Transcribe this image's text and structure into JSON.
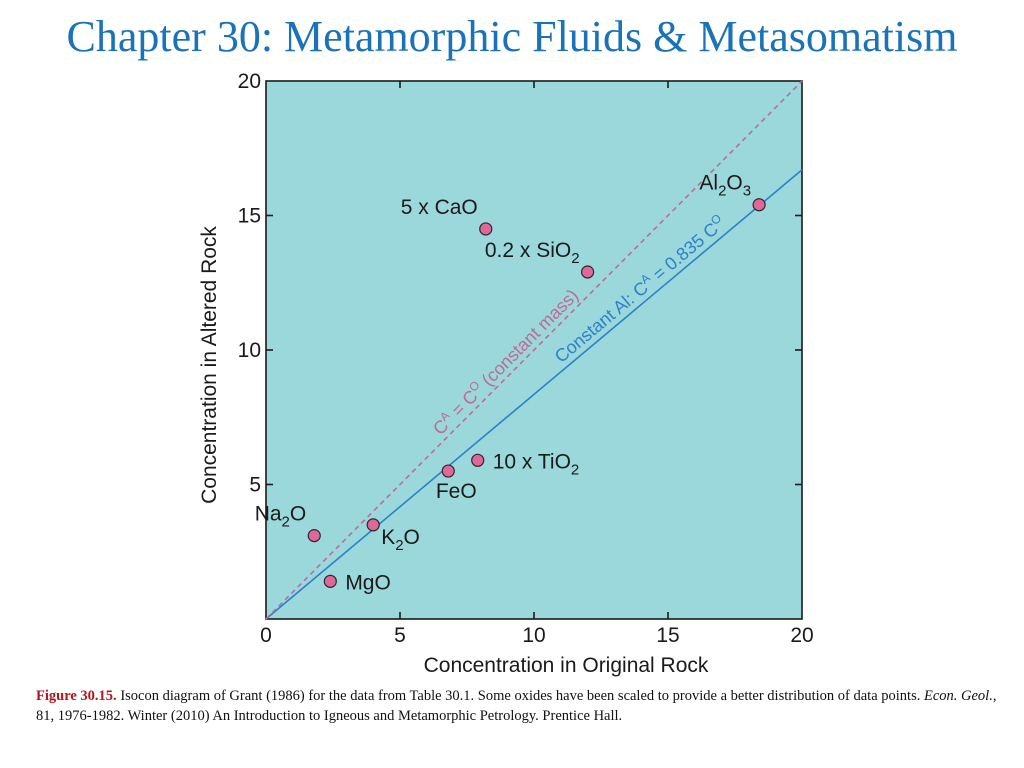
{
  "slide": {
    "title": "Chapter 30: Metamorphic Fluids & Metasomatism"
  },
  "colors": {
    "title": "#1a73b8",
    "plot_background": "#9bd8db",
    "isocon_line": "#2f80c8",
    "constant_mass_line": "#c0699a",
    "point_fill": "#e0679a",
    "caption_label": "#b3151b"
  },
  "caption": {
    "label": "Figure 30.15.",
    "text_1": " Isocon diagram of Grant (1986) for the data from Table 30.1. Some oxides have been scaled to provide a better distribution of data points. ",
    "journal": "Econ. Geol.",
    "text_2": ", 81, 1976-1982. Winter (2010) An Introduction to Igneous and Metamorphic Petrology. Prentice Hall."
  },
  "chart_data": {
    "type": "scatter",
    "xlabel": "Concentration in Original Rock",
    "ylabel": "Concentration in Altered Rock",
    "xlim": [
      0,
      20
    ],
    "ylim": [
      0,
      20
    ],
    "xticks": [
      "0",
      "5",
      "10",
      "15",
      "20"
    ],
    "yticks": [
      "5",
      "10",
      "15",
      "20"
    ],
    "grid": false,
    "points": [
      {
        "label": "Na",
        "sub": "2",
        "label_end": "O",
        "x": 1.8,
        "y": 3.1,
        "anchor": "above-left"
      },
      {
        "label": "K",
        "sub": "2",
        "label_end": "O",
        "x": 4.0,
        "y": 3.5,
        "anchor": "below-right"
      },
      {
        "label": "MgO",
        "sub": "",
        "label_end": "",
        "x": 2.4,
        "y": 1.4,
        "anchor": "right"
      },
      {
        "label": "FeO",
        "sub": "",
        "label_end": "",
        "x": 6.8,
        "y": 5.5,
        "anchor": "below"
      },
      {
        "label": "10 x TiO",
        "sub": "2",
        "label_end": "",
        "x": 7.9,
        "y": 5.9,
        "anchor": "right"
      },
      {
        "label": "0.2 x SiO",
        "sub": "2",
        "label_end": "",
        "x": 12.0,
        "y": 12.9,
        "anchor": "above-left"
      },
      {
        "label": "5 x CaO",
        "sub": "",
        "label_end": "",
        "x": 8.2,
        "y": 14.5,
        "anchor": "above-left"
      },
      {
        "label": "Al",
        "sub": "2",
        "label_mid": "O",
        "sub2": "3",
        "x": 18.4,
        "y": 15.4,
        "anchor": "above-left"
      }
    ],
    "lines": [
      {
        "name_main": "Constant Al: C",
        "sup1": "A",
        "name_mid": " = 0.835 C",
        "sup2": "O",
        "slope": 0.835,
        "style": "solid"
      },
      {
        "name_main": "C",
        "sup1": "A",
        "name_mid": " = C",
        "sup2": "O",
        "name_end": " (constant mass)",
        "slope": 1.0,
        "style": "dashed"
      }
    ]
  }
}
